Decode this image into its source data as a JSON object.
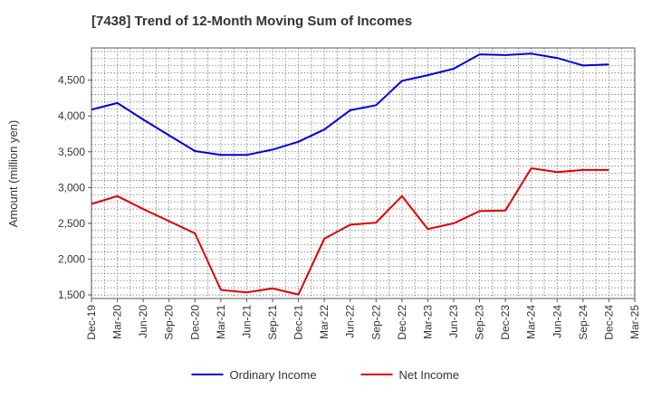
{
  "chart_data": {
    "type": "line",
    "title": "[7438]  Trend of 12-Month Moving Sum of Incomes",
    "xlabel": "",
    "ylabel": "Amount (million yen)",
    "categories": [
      "Dec-19",
      "Mar-20",
      "Jun-20",
      "Sep-20",
      "Dec-20",
      "Mar-21",
      "Jun-21",
      "Sep-21",
      "Dec-21",
      "Mar-22",
      "Jun-22",
      "Sep-22",
      "Dec-22",
      "Mar-23",
      "Jun-23",
      "Sep-23",
      "Dec-23",
      "Mar-24",
      "Jun-24",
      "Sep-24",
      "Dec-24",
      "Mar-25"
    ],
    "ylim": [
      1450,
      4950
    ],
    "yticks": [
      1500,
      2000,
      2500,
      3000,
      3500,
      4000,
      4500
    ],
    "ytick_labels": [
      "1,500",
      "2,000",
      "2,500",
      "3,000",
      "3,500",
      "4,000",
      "4,500"
    ],
    "grid": true,
    "legend_position": "bottom-center",
    "series": [
      {
        "name": "Ordinary Income",
        "color": "#0000dd",
        "values": [
          4090,
          4180,
          3950,
          3730,
          3510,
          3455,
          3455,
          3530,
          3640,
          3810,
          4080,
          4150,
          4490,
          4570,
          4660,
          4860,
          4850,
          4870,
          4810,
          4705,
          4720,
          null
        ]
      },
      {
        "name": "Net Income",
        "color": "#dd0000",
        "values": [
          2770,
          2880,
          2700,
          2530,
          2360,
          1570,
          1535,
          1590,
          1505,
          2285,
          2480,
          2510,
          2880,
          2420,
          2500,
          2670,
          2680,
          3270,
          3215,
          3245,
          3245,
          null
        ]
      }
    ]
  }
}
